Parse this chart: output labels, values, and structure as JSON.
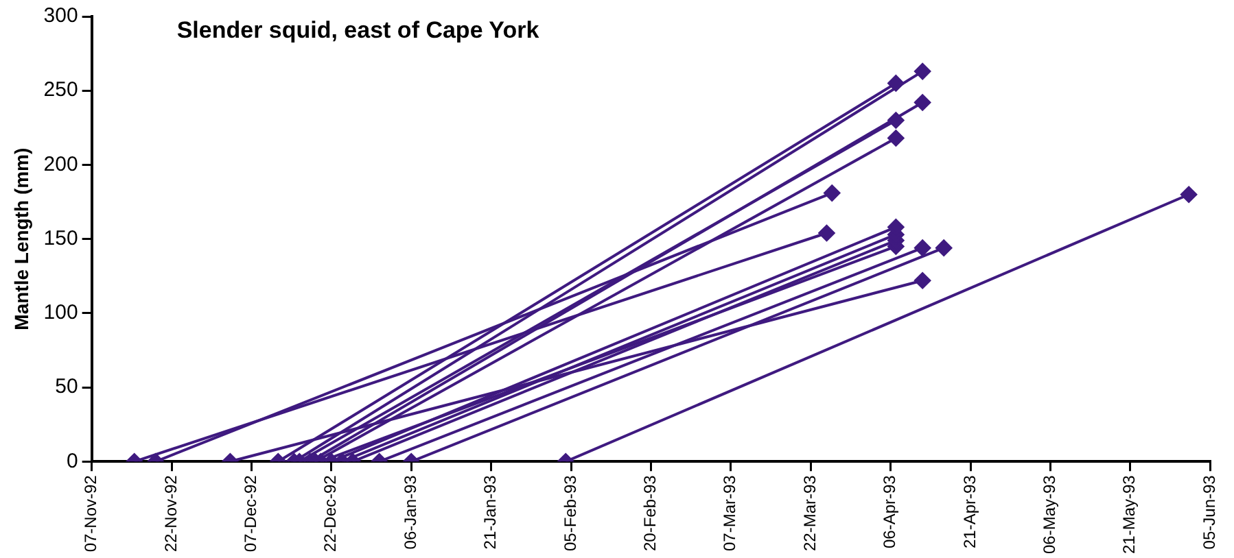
{
  "chart_data": {
    "type": "line",
    "title": "Slender squid, east of Cape York",
    "ylabel": "Mantle Length (mm)",
    "marker": "diamond",
    "line_style": "solid",
    "grid": false,
    "xlim": [
      "1992-11-07",
      "1993-06-05"
    ],
    "xticks": [
      {
        "value": "1992-11-07",
        "label": "07-Nov-92"
      },
      {
        "value": "1992-11-22",
        "label": "22-Nov-92"
      },
      {
        "value": "1992-12-07",
        "label": "07-Dec-92"
      },
      {
        "value": "1992-12-22",
        "label": "22-Dec-92"
      },
      {
        "value": "1993-01-06",
        "label": "06-Jan-93"
      },
      {
        "value": "1993-01-21",
        "label": "21-Jan-93"
      },
      {
        "value": "1993-02-05",
        "label": "05-Feb-93"
      },
      {
        "value": "1993-02-20",
        "label": "20-Feb-93"
      },
      {
        "value": "1993-03-07",
        "label": "07-Mar-93"
      },
      {
        "value": "1993-03-22",
        "label": "22-Mar-93"
      },
      {
        "value": "1993-04-06",
        "label": "06-Apr-93"
      },
      {
        "value": "1993-04-21",
        "label": "21-Apr-93"
      },
      {
        "value": "1993-05-06",
        "label": "06-May-93"
      },
      {
        "value": "1993-05-21",
        "label": "21-May-93"
      },
      {
        "value": "1993-06-05",
        "label": "05-Jun-93"
      }
    ],
    "ylim": [
      0,
      300
    ],
    "yticks": [
      0,
      50,
      100,
      150,
      200,
      250,
      300
    ],
    "series": [
      {
        "color": "#3f1a80",
        "x": [
          "1992-11-15",
          "1993-03-25"
        ],
        "values": [
          0,
          154
        ]
      },
      {
        "color": "#3f1a80",
        "x": [
          "1992-11-19",
          "1993-03-26"
        ],
        "values": [
          0,
          181
        ]
      },
      {
        "color": "#3f1a80",
        "x": [
          "1992-12-03",
          "1993-04-12"
        ],
        "values": [
          0,
          122
        ]
      },
      {
        "color": "#3f1a80",
        "x": [
          "1992-12-12",
          "1993-04-07"
        ],
        "values": [
          0,
          255
        ]
      },
      {
        "color": "#3f1a80",
        "x": [
          "1992-12-15",
          "1993-04-12"
        ],
        "values": [
          0,
          263
        ]
      },
      {
        "color": "#3f1a80",
        "x": [
          "1992-12-16",
          "1993-04-07"
        ],
        "values": [
          0,
          230
        ]
      },
      {
        "color": "#3f1a80",
        "x": [
          "1992-12-18",
          "1993-04-12"
        ],
        "values": [
          0,
          242
        ]
      },
      {
        "color": "#3f1a80",
        "x": [
          "1992-12-19",
          "1993-04-07"
        ],
        "values": [
          0,
          218
        ]
      },
      {
        "color": "#3f1a80",
        "x": [
          "1992-12-22",
          "1993-04-07"
        ],
        "values": [
          0,
          158
        ]
      },
      {
        "color": "#3f1a80",
        "x": [
          "1992-12-24",
          "1993-04-07"
        ],
        "values": [
          0,
          153
        ]
      },
      {
        "color": "#3f1a80",
        "x": [
          "1992-12-26",
          "1993-04-07"
        ],
        "values": [
          0,
          149
        ]
      },
      {
        "color": "#3f1a80",
        "x": [
          "1992-12-31",
          "1993-04-12"
        ],
        "values": [
          0,
          144
        ]
      },
      {
        "color": "#3f1a80",
        "x": [
          "1993-01-06",
          "1993-04-16"
        ],
        "values": [
          0,
          144
        ]
      },
      {
        "color": "#3f1a80",
        "x": [
          "1992-12-20",
          "1993-04-07"
        ],
        "values": [
          0,
          145
        ]
      },
      {
        "color": "#3f1a80",
        "x": [
          "1993-02-04",
          "1993-06-01"
        ],
        "values": [
          0,
          180
        ]
      }
    ]
  }
}
